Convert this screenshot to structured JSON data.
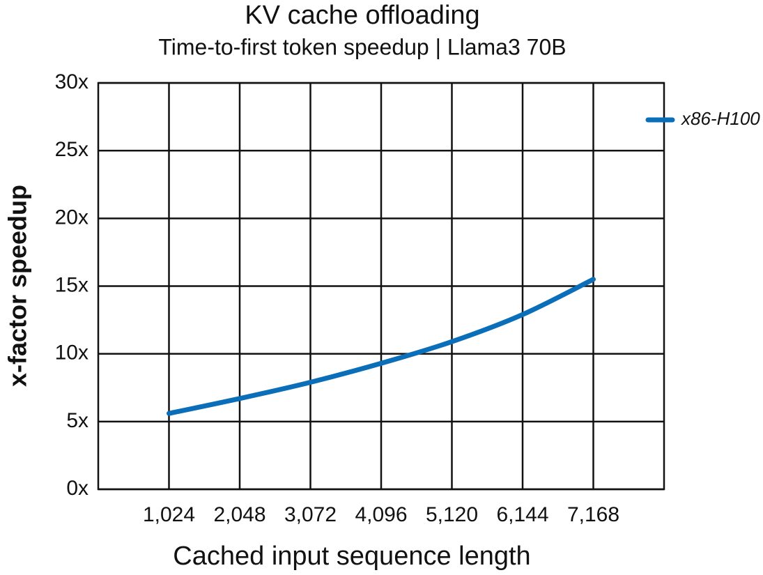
{
  "chart_data": {
    "type": "line",
    "title": "KV cache offloading",
    "subtitle": "Time-to-first token speedup | Llama3 70B",
    "x_label": "Cached input sequence length",
    "y_label": "x-factor speedup",
    "x": [
      1024,
      2048,
      3072,
      4096,
      5120,
      6144,
      7168
    ],
    "series": [
      {
        "name": "x86-H100",
        "color": "#0a6fb8",
        "values": [
          5.6,
          6.7,
          7.9,
          9.3,
          10.9,
          12.9,
          15.5
        ]
      }
    ],
    "xlim": [
      0,
      8192
    ],
    "xticks": [
      {
        "value": 1024,
        "label": "1,024"
      },
      {
        "value": 2048,
        "label": "2,048"
      },
      {
        "value": 3072,
        "label": "3,072"
      },
      {
        "value": 4096,
        "label": "4,096"
      },
      {
        "value": 5120,
        "label": "5,120"
      },
      {
        "value": 6144,
        "label": "6,144"
      },
      {
        "value": 7168,
        "label": "7,168"
      }
    ],
    "ylim": [
      0,
      30
    ],
    "yticks": [
      {
        "value": 0,
        "label": "0x"
      },
      {
        "value": 5,
        "label": "5x"
      },
      {
        "value": 10,
        "label": "10x"
      },
      {
        "value": 15,
        "label": "15x"
      },
      {
        "value": 20,
        "label": "20x"
      },
      {
        "value": 25,
        "label": "25x"
      },
      {
        "value": 30,
        "label": "30x"
      }
    ],
    "grid": true,
    "legend": "upper right outside"
  }
}
